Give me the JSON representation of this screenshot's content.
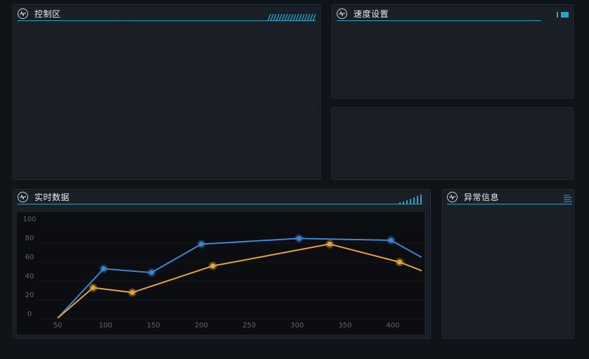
{
  "panels": {
    "control": {
      "title": "控制区"
    },
    "speed": {
      "title": "速度设置"
    },
    "realtime": {
      "title": "实时数据"
    },
    "alert": {
      "title": "异常信息"
    }
  },
  "colors": {
    "accent": "#23a7c9",
    "series_blue": "#3a86d6",
    "series_orange": "#e7a23b",
    "panel_bg": "#1a1f26",
    "page_bg": "#0f1419"
  },
  "chart_data": {
    "type": "line",
    "x_ticks": [
      50,
      100,
      150,
      200,
      250,
      300,
      350,
      400
    ],
    "y_ticks": [
      0,
      20,
      40,
      60,
      80,
      100
    ],
    "xlim": [
      50,
      430
    ],
    "ylim": [
      -5,
      105
    ],
    "grid": true,
    "series": [
      {
        "color": "#3a86d6",
        "x": [
          50,
          98,
          148,
          200,
          302,
          398,
          430
        ],
        "y": [
          -5,
          47,
          43,
          73,
          79,
          77,
          59
        ]
      },
      {
        "color": "#e7a23b",
        "x": [
          50,
          87,
          128,
          212,
          334,
          407,
          430
        ],
        "y": [
          -5,
          27,
          22,
          50,
          73,
          54,
          45
        ]
      }
    ]
  }
}
